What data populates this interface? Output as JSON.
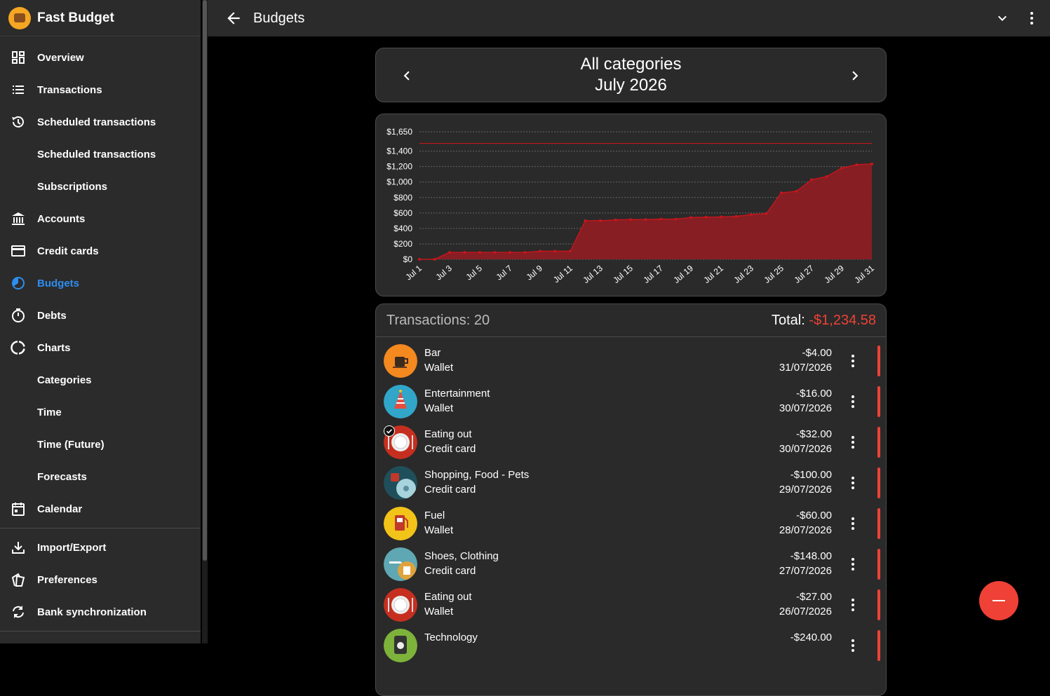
{
  "app": {
    "name": "Fast Budget"
  },
  "sidebar": {
    "items": [
      {
        "label": "Overview",
        "icon": "dashboard-icon"
      },
      {
        "label": "Transactions",
        "icon": "list-icon"
      },
      {
        "label": "Scheduled transactions",
        "icon": "history-icon"
      },
      {
        "label": "Scheduled transactions"
      },
      {
        "label": "Subscriptions"
      },
      {
        "label": "Accounts",
        "icon": "bank-icon"
      },
      {
        "label": "Credit cards",
        "icon": "credit-card-icon"
      },
      {
        "label": "Budgets",
        "icon": "budget-pie-icon",
        "active": true
      },
      {
        "label": "Debts",
        "icon": "timer-icon"
      },
      {
        "label": "Charts",
        "icon": "donut-chart-icon"
      },
      {
        "label": "Categories"
      },
      {
        "label": "Time"
      },
      {
        "label": "Time (Future)"
      },
      {
        "label": "Forecasts"
      },
      {
        "label": "Calendar",
        "icon": "calendar-icon"
      },
      {
        "label": "Import/Export",
        "icon": "download-icon"
      },
      {
        "label": "Preferences",
        "icon": "preferences-icon"
      },
      {
        "label": "Bank synchronization",
        "icon": "sync-icon"
      }
    ]
  },
  "topbar": {
    "title": "Budgets"
  },
  "period": {
    "category": "All categories",
    "month": "July 2026"
  },
  "list": {
    "count_label": "Transactions: 20",
    "total_label": "Total:",
    "total_value": "-$1,234.58",
    "transactions": [
      {
        "name": "Bar",
        "account": "Wallet",
        "amount": "-$4.00",
        "date": "31/07/2026",
        "icon": "coffee-cup-icon",
        "color": "#f4891f"
      },
      {
        "name": "Entertainment",
        "account": "Wallet",
        "amount": "-$16.00",
        "date": "30/07/2026",
        "icon": "party-hat-icon",
        "color": "#31a6c9"
      },
      {
        "name": "Eating out",
        "account": "Credit card",
        "amount": "-$32.00",
        "date": "30/07/2026",
        "icon": "plate-icon",
        "color": "#c62f1f",
        "checked": true
      },
      {
        "name": "Shopping, Food - Pets",
        "account": "Credit card",
        "amount": "-$100.00",
        "date": "29/07/2026",
        "icon": "shopping-pets-icon",
        "color": "#1f4f5a"
      },
      {
        "name": "Fuel",
        "account": "Wallet",
        "amount": "-$60.00",
        "date": "28/07/2026",
        "icon": "fuel-pump-icon",
        "color": "#f2c318"
      },
      {
        "name": "Shoes, Clothing",
        "account": "Credit card",
        "amount": "-$148.00",
        "date": "27/07/2026",
        "icon": "shoes-clothing-icon",
        "color": "#5fa8b3"
      },
      {
        "name": "Eating out",
        "account": "Wallet",
        "amount": "-$27.00",
        "date": "26/07/2026",
        "icon": "plate-icon",
        "color": "#c62f1f"
      },
      {
        "name": "Technology",
        "account": "",
        "amount": "-$240.00",
        "date": "",
        "icon": "technology-icon",
        "color": "#7db33a"
      }
    ]
  },
  "chart_data": {
    "type": "area",
    "x": [
      "Jul 1",
      "Jul 2",
      "Jul 3",
      "Jul 4",
      "Jul 5",
      "Jul 6",
      "Jul 7",
      "Jul 8",
      "Jul 9",
      "Jul 10",
      "Jul 11",
      "Jul 12",
      "Jul 13",
      "Jul 14",
      "Jul 15",
      "Jul 16",
      "Jul 17",
      "Jul 18",
      "Jul 19",
      "Jul 20",
      "Jul 21",
      "Jul 22",
      "Jul 23",
      "Jul 24",
      "Jul 25",
      "Jul 26",
      "Jul 27",
      "Jul 28",
      "Jul 29",
      "Jul 30",
      "Jul 31"
    ],
    "x_tick_labels": [
      "Jul 1",
      "Jul 3",
      "Jul 5",
      "Jul 7",
      "Jul 9",
      "Jul 11",
      "Jul 13",
      "Jul 15",
      "Jul 17",
      "Jul 19",
      "Jul 21",
      "Jul 23",
      "Jul 25",
      "Jul 27",
      "Jul 29",
      "Jul 31"
    ],
    "series": [
      {
        "values": [
          0,
          0,
          90,
          90,
          90,
          90,
          90,
          90,
          105,
          105,
          105,
          500,
          500,
          510,
          515,
          515,
          520,
          520,
          540,
          545,
          548,
          555,
          580,
          590,
          860,
          880,
          1030,
          1070,
          1180,
          1224,
          1234.58
        ]
      }
    ],
    "budget_line": 1500,
    "y_ticks": [
      0,
      200,
      400,
      600,
      800,
      1000,
      1200,
      1400,
      1650
    ],
    "y_tick_labels": [
      "$0",
      "$200",
      "$400",
      "$600",
      "$800",
      "$1,000",
      "$1,200",
      "$1,400",
      "$1,650"
    ],
    "ylim": [
      0,
      1650
    ],
    "grid": true,
    "colors": {
      "area": "#8b1e23",
      "line": "#c4161c",
      "budget": "#c4161c"
    }
  }
}
